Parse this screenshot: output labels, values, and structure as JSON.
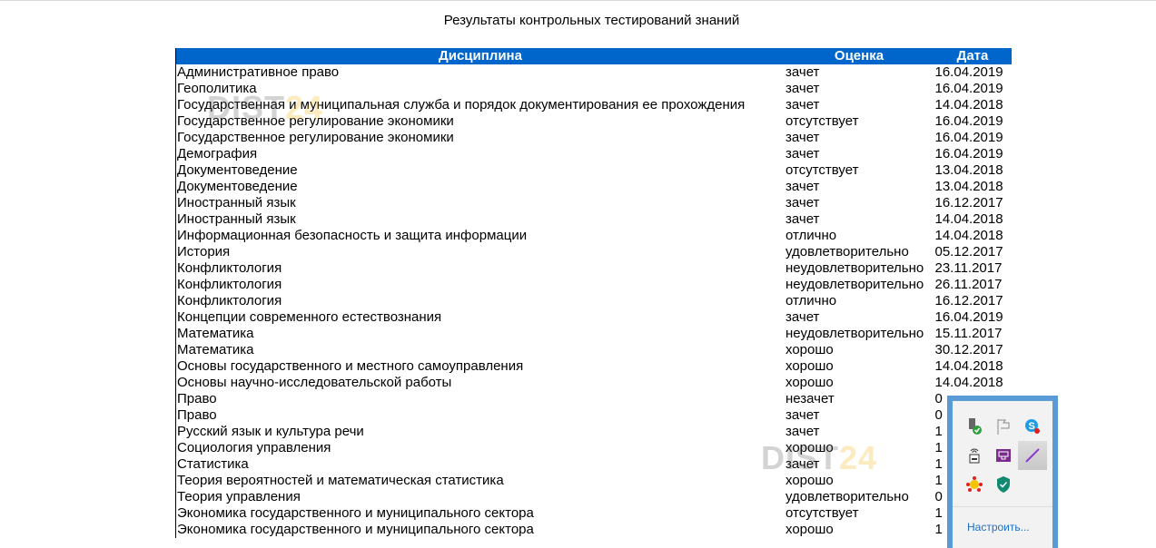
{
  "title": "Результаты контрольных тестирований знаний",
  "table": {
    "headers": [
      "Дисциплина",
      "Оценка",
      "Дата"
    ],
    "rows": [
      [
        "Административное право",
        "зачет",
        "16.04.2019"
      ],
      [
        "Геополитика",
        "зачет",
        "16.04.2019"
      ],
      [
        "Государственная и муниципальная служба и порядок документирования ее прохождения",
        "зачет",
        "14.04.2018"
      ],
      [
        "Государственное регулирование экономики",
        "отсутствует",
        "16.04.2019"
      ],
      [
        "Государственное регулирование экономики",
        "зачет",
        "16.04.2019"
      ],
      [
        "Демография",
        "зачет",
        "16.04.2019"
      ],
      [
        "Документоведение",
        "отсутствует",
        "13.04.2018"
      ],
      [
        "Документоведение",
        "зачет",
        "13.04.2018"
      ],
      [
        "Иностранный язык",
        "зачет",
        "16.12.2017"
      ],
      [
        "Иностранный язык",
        "зачет",
        "14.04.2018"
      ],
      [
        "Информационная безопасность и защита информации",
        "отлично",
        "14.04.2018"
      ],
      [
        "История",
        "удовлетворительно",
        "05.12.2017"
      ],
      [
        "Конфликтология",
        "неудовлетворительно",
        "23.11.2017"
      ],
      [
        "Конфликтология",
        "неудовлетворительно",
        "26.11.2017"
      ],
      [
        "Конфликтология",
        "отлично",
        "16.12.2017"
      ],
      [
        "Концепции современного естествознания",
        "зачет",
        "16.04.2019"
      ],
      [
        "Математика",
        "неудовлетворительно",
        "15.11.2017"
      ],
      [
        "Математика",
        "хорошо",
        "30.12.2017"
      ],
      [
        "Основы государственного и местного самоуправления",
        "хорошо",
        "14.04.2018"
      ],
      [
        "Основы научно-исследовательской работы",
        "хорошо",
        "14.04.2018"
      ],
      [
        "Право",
        "незачет",
        "0"
      ],
      [
        "Право",
        "зачет",
        "0"
      ],
      [
        "Русский язык и культура речи",
        "зачет",
        "1"
      ],
      [
        "Социология управления",
        "хорошо",
        "1"
      ],
      [
        "Статистика",
        "зачет",
        "1"
      ],
      [
        "Теория вероятностей и математическая статистика",
        "хорошо",
        "1"
      ],
      [
        "Теория управления",
        "удовлетворительно",
        "0"
      ],
      [
        "Экономика государственного и муниципального сектора",
        "отсутствует",
        "1"
      ],
      [
        "Экономика государственного и муниципального сектора",
        "хорошо",
        "1"
      ]
    ]
  },
  "watermark": {
    "text_a": "DIST",
    "text_b": "24"
  },
  "tray_popup": {
    "icons": [
      "usb-safe-remove-icon",
      "action-center-flag-icon",
      "skype-icon",
      "network-printer-icon",
      "presentation-icon",
      "pen-icon",
      "alert-network-icon",
      "security-shield-icon"
    ],
    "customize_label": "Настроить..."
  },
  "colors": {
    "header_bg": "#0066cc",
    "tray_border": "#5b9bd5",
    "link": "#1e6ec8"
  }
}
